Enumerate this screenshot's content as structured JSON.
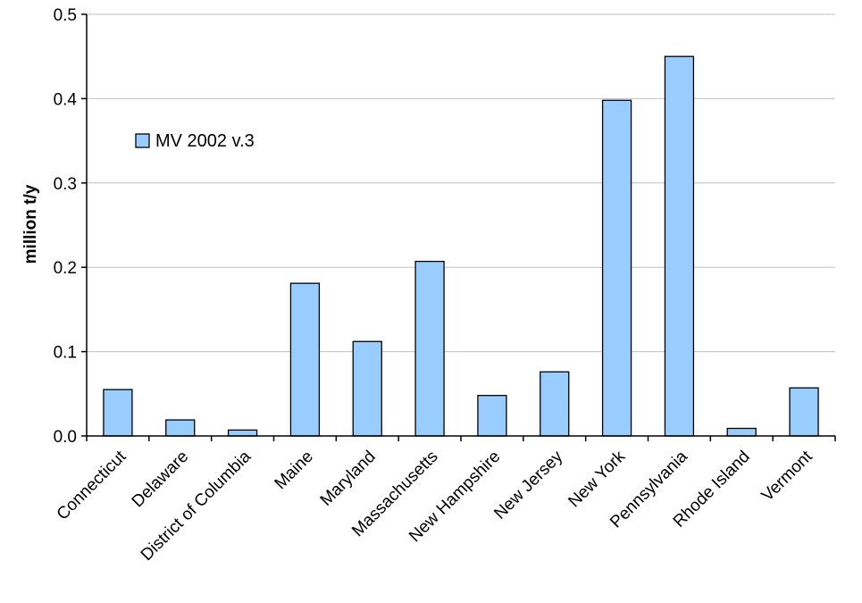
{
  "chart_data": {
    "type": "bar",
    "categories": [
      "Connecticut",
      "Delaware",
      "District of Columbia",
      "Maine",
      "Maryland",
      "Massachusetts",
      "New Hampshire",
      "New Jersey",
      "New York",
      "Pennsylvania",
      "Rhode Island",
      "Vermont"
    ],
    "series": [
      {
        "name": "MV 2002 v.3",
        "values": [
          0.055,
          0.019,
          0.007,
          0.181,
          0.112,
          0.207,
          0.048,
          0.076,
          0.398,
          0.45,
          0.009,
          0.057
        ]
      }
    ],
    "ylabel": "million t/y",
    "xlabel": "",
    "ylim": [
      0,
      0.5
    ],
    "yticks": [
      0,
      0.1,
      0.2,
      0.3,
      0.4,
      0.5
    ],
    "ytick_labels": [
      "0.0",
      "0.1",
      "0.2",
      "0.3",
      "0.4",
      "0.5"
    ],
    "grid": true,
    "legend_position": "top-left",
    "bar_color": "#99CCFF",
    "bar_stroke": "#000000"
  }
}
